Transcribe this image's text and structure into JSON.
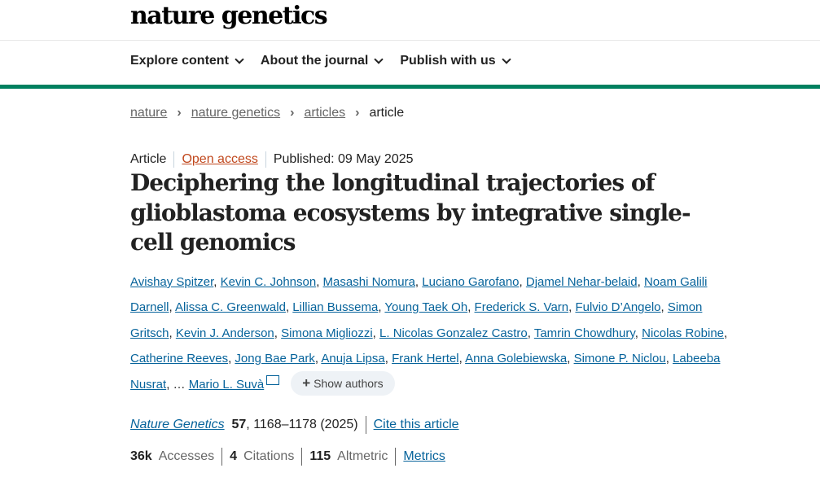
{
  "header": {
    "logo": "nature genetics",
    "nav": [
      {
        "label": "Explore content"
      },
      {
        "label": "About the journal"
      },
      {
        "label": "Publish with us"
      }
    ]
  },
  "breadcrumb": [
    "nature",
    "nature genetics",
    "articles",
    "article"
  ],
  "meta": {
    "type": "Article",
    "access": "Open access",
    "published": "Published: 09 May 2025"
  },
  "title": "Deciphering the longitudinal trajectories of glioblastoma ecosystems by integrative single-cell genomics",
  "authors": [
    "Avishay Spitzer",
    "Kevin C. Johnson",
    "Masashi Nomura",
    "Luciano Garofano",
    "Djamel Nehar-belaid",
    "Noam Galili Darnell",
    "Alissa C. Greenwald",
    "Lillian Bussema",
    "Young Taek Oh",
    "Frederick S. Varn",
    "Fulvio D’Angelo",
    "Simon Gritsch",
    "Kevin J. Anderson",
    "Simona Migliozzi",
    "L. Nicolas Gonzalez Castro",
    "Tamrin Chowdhury",
    "Nicolas Robine",
    "Catherine Reeves",
    "Jong Bae Park",
    "Anuja Lipsa",
    "Frank Hertel",
    "Anna Golebiewska",
    "Simone P. Niclou",
    "Labeeba Nusrat",
    "Mario L. Suvà"
  ],
  "ellipsis": "…",
  "show_authors": "Show authors",
  "citation": {
    "journal": "Nature Genetics",
    "volume": "57",
    "pages": ", 1168–1178 (2025)",
    "cite_link": "Cite this article"
  },
  "stats": {
    "accesses_value": "36k",
    "accesses_label": "Accesses",
    "citations_value": "4",
    "citations_label": "Citations",
    "altmetric_value": "115",
    "altmetric_label": "Altmetric",
    "metrics_link": "Metrics"
  },
  "colors": {
    "accent": "#00805f",
    "link": "#06639b",
    "open_access": "#c0471c"
  }
}
